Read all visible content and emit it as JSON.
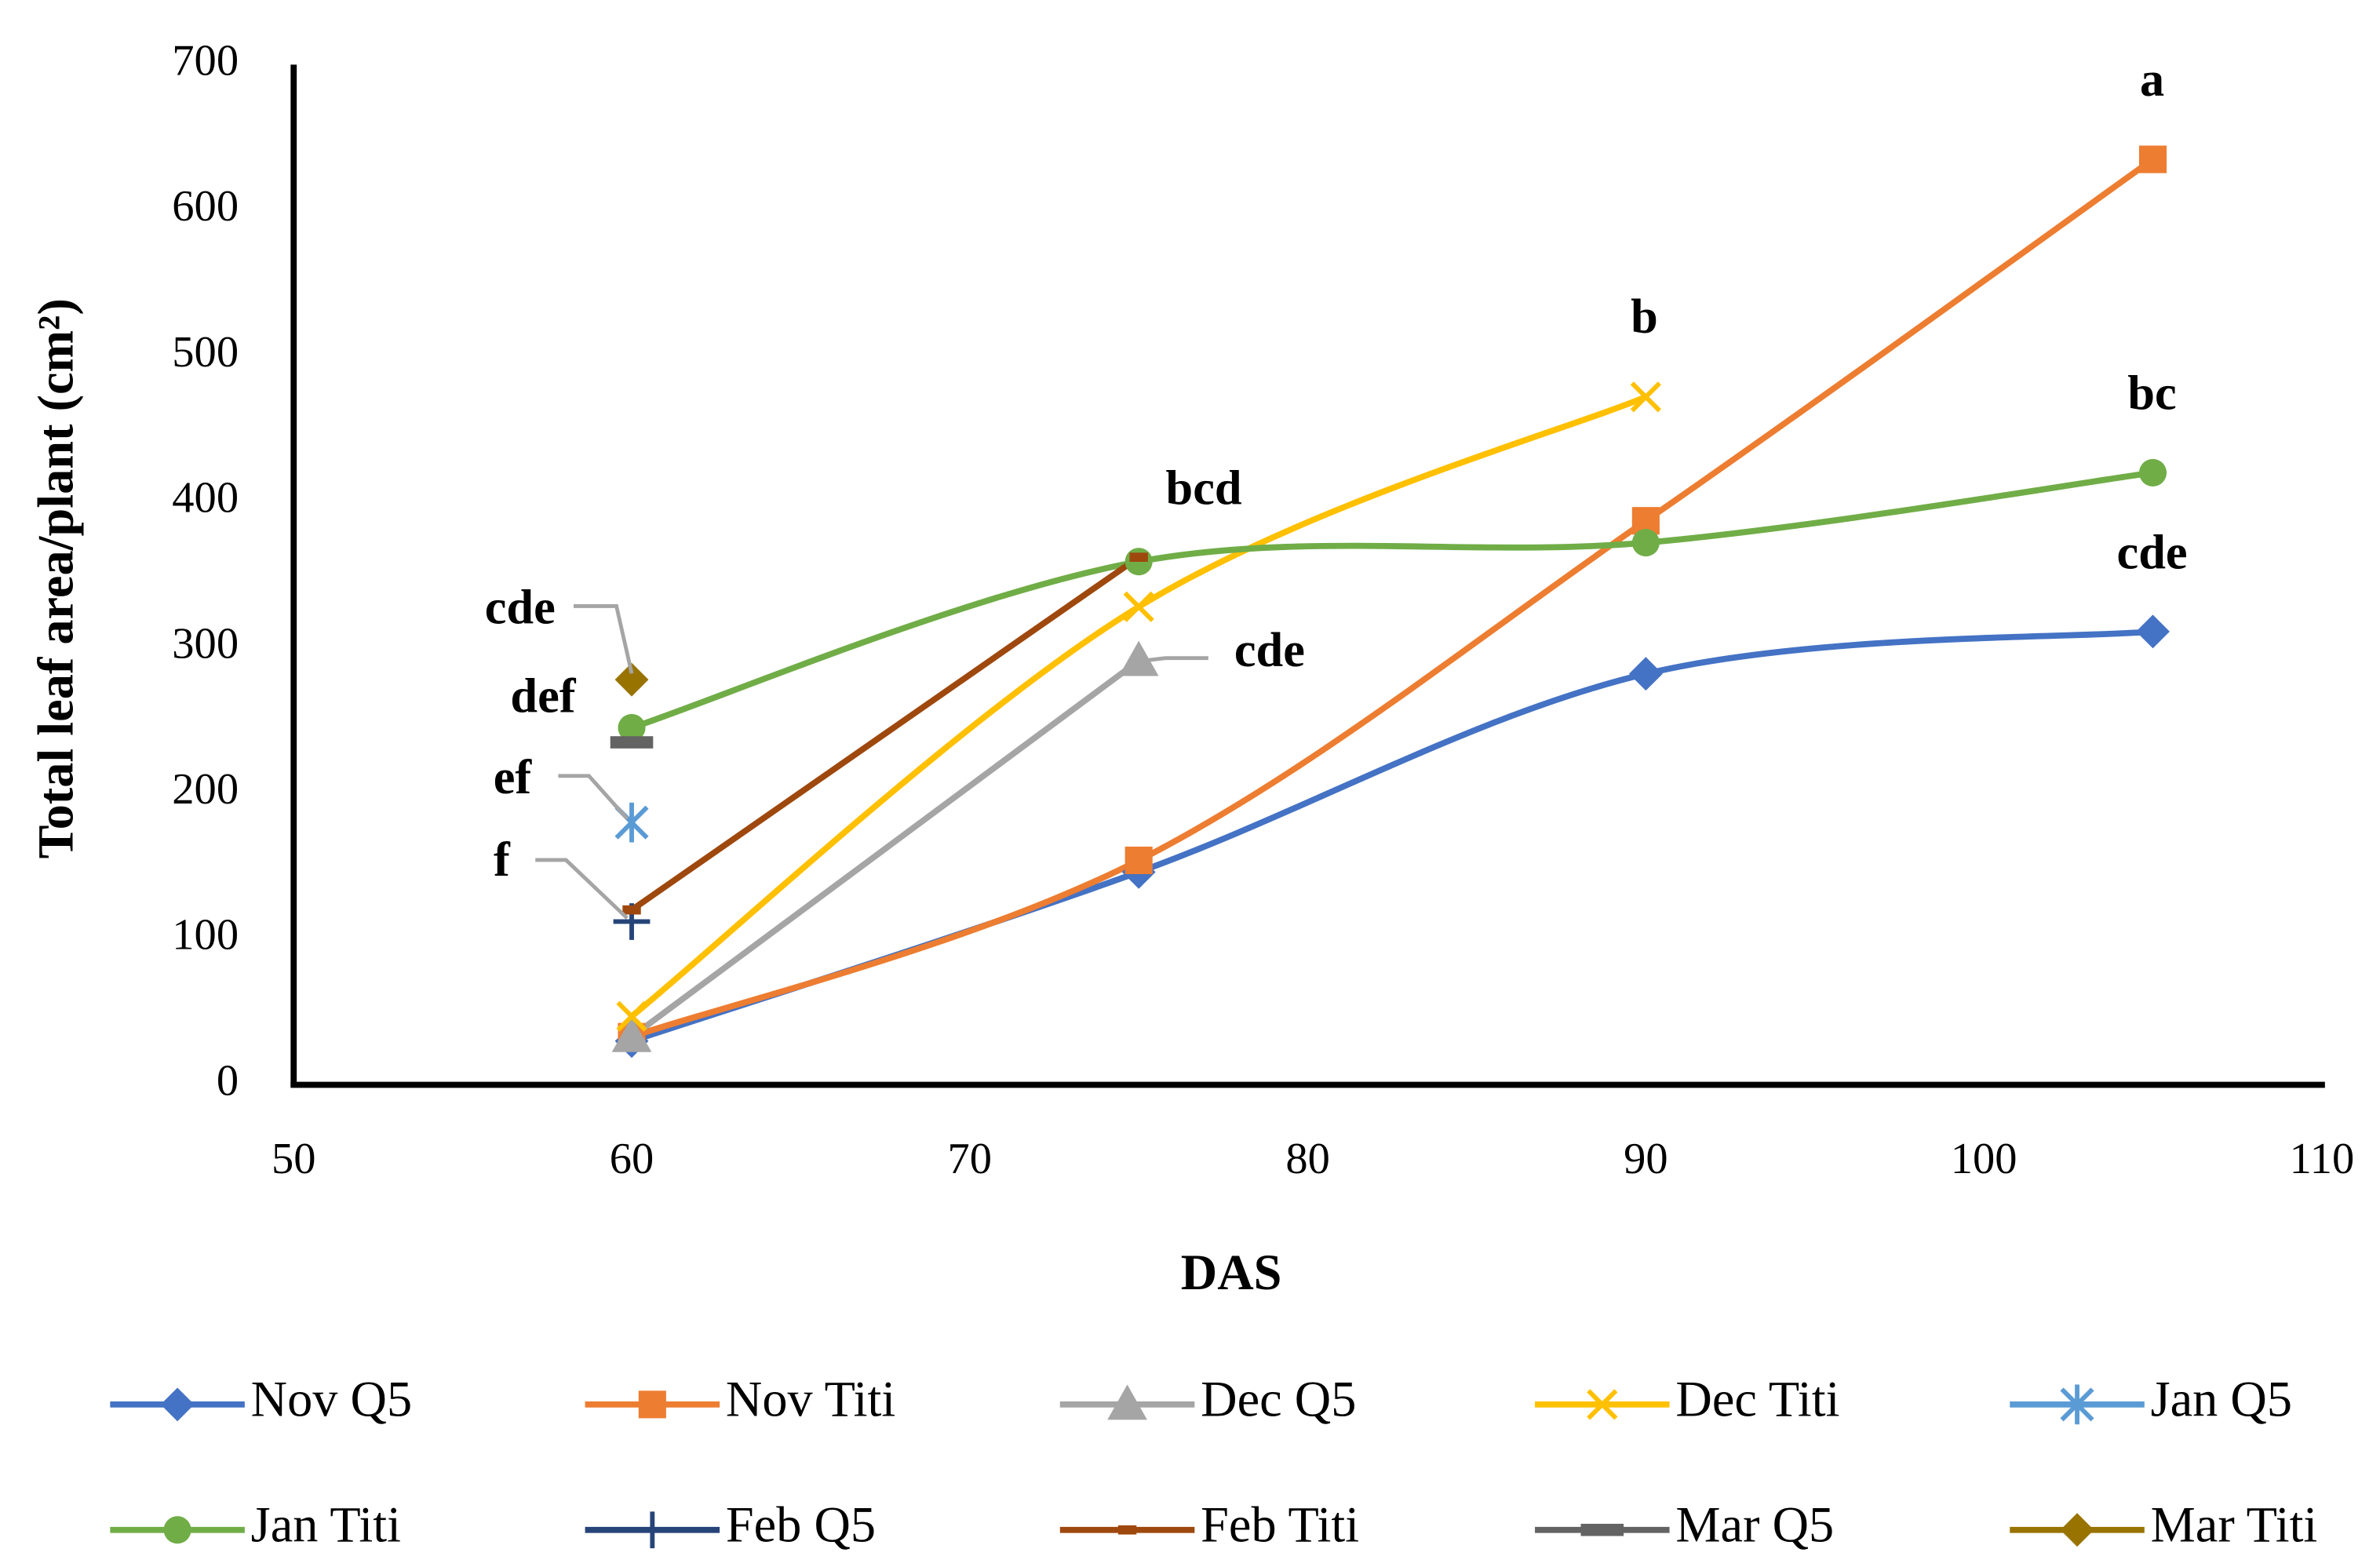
{
  "chart_data": {
    "type": "line",
    "x_label": "DAS",
    "y_label": "Total leaf area/plant (cm²)",
    "x": [
      60,
      75,
      90,
      105
    ],
    "xlim": [
      50,
      110
    ],
    "xticks": [
      50,
      60,
      70,
      80,
      90,
      100,
      110
    ],
    "ylim": [
      0,
      700
    ],
    "yticks": [
      0,
      100,
      200,
      300,
      400,
      500,
      600,
      700
    ],
    "grid": false,
    "smooth": true,
    "legend": "bottom",
    "series": [
      {
        "name": "Nov Q5",
        "color": "#4472c4",
        "marker": "diamond",
        "values": [
          30,
          146,
          282,
          311
        ]
      },
      {
        "name": "Nov Titi",
        "color": "#ed7d31",
        "marker": "square",
        "values": [
          33,
          154,
          387,
          635
        ]
      },
      {
        "name": "Dec Q5",
        "color": "#a5a5a5",
        "marker": "triangle",
        "values": [
          33,
          291,
          null,
          null
        ]
      },
      {
        "name": "Dec Titi",
        "color": "#ffc000",
        "marker": "x",
        "values": [
          47,
          328,
          472,
          null
        ]
      },
      {
        "name": "Jan Q5",
        "color": "#5b9bd5",
        "marker": "asterisk",
        "values": [
          180,
          null,
          null,
          null
        ]
      },
      {
        "name": "Jan Titi",
        "color": "#70ad47",
        "marker": "circle",
        "values": [
          245,
          359,
          372,
          420
        ]
      },
      {
        "name": "Feb Q5",
        "color": "#264478",
        "marker": "plus",
        "values": [
          112,
          null,
          null,
          null
        ]
      },
      {
        "name": "Feb Titi",
        "color": "#9e480e",
        "marker": "dash",
        "values": [
          120,
          362,
          null,
          null
        ]
      },
      {
        "name": "Mar Q5",
        "color": "#636363",
        "marker": "bar",
        "values": [
          235,
          null,
          null,
          null
        ]
      },
      {
        "name": "Mar Titi",
        "color": "#997300",
        "marker": "diamond",
        "values": [
          278,
          null,
          null,
          null
        ]
      }
    ],
    "annotations": [
      "a",
      "b",
      "bc",
      "bcd",
      "cde",
      "cde",
      "def",
      "ef",
      "f",
      "cde"
    ]
  }
}
